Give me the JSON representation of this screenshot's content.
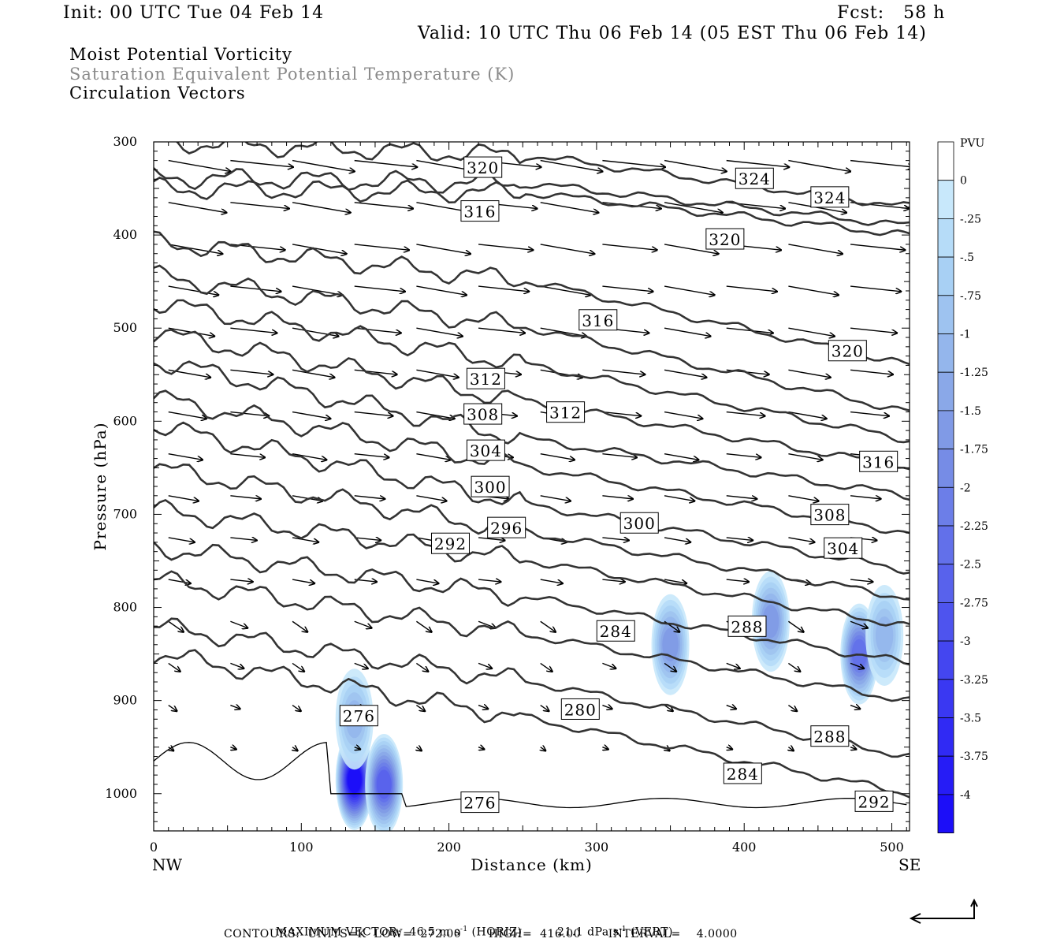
{
  "header": {
    "init": "Init: 00 UTC Tue 04 Feb 14",
    "fcst": "Fcst:   58 h",
    "valid": "Valid: 10 UTC Thu 06 Feb 14 (05 EST Thu 06 Feb 14)"
  },
  "descriptions": [
    "Moist Potential Vorticity",
    "Saturation Equivalent Potential Temperature (K)",
    "Circulation Vectors"
  ],
  "chart_data": {
    "type": "contour-cross-section",
    "ylabel": "Pressure (hPa)",
    "xlabel": "Distance (km)",
    "x_ticks": [
      0,
      100,
      200,
      300,
      400,
      500
    ],
    "y_ticks": [
      300,
      400,
      500,
      600,
      700,
      800,
      900,
      1000
    ],
    "xlim": [
      0,
      512
    ],
    "ylim": [
      300,
      1040
    ],
    "x_end_labels": {
      "left": "NW",
      "right": "SE"
    },
    "colorbar": {
      "unit": "PVU",
      "labels": [
        "0",
        "-.25",
        "-.5",
        "-.75",
        "-1",
        "-1.25",
        "-1.5",
        "-1.75",
        "-2",
        "-2.25",
        "-2.5",
        "-2.75",
        "-3",
        "-3.25",
        "-3.5",
        "-3.75",
        "-4"
      ],
      "colors": [
        "#ffffff",
        "#c8e8fb",
        "#b6dcf8",
        "#a8d0f4",
        "#9ec3f0",
        "#94b6ec",
        "#8aa8e8",
        "#809ae6",
        "#768ce6",
        "#6c7ee8",
        "#6270ea",
        "#5862ec",
        "#4e54ee",
        "#4446f0",
        "#3a38f2",
        "#302af4",
        "#261cf6",
        "#1c0ef8"
      ]
    },
    "contour_labels": [
      {
        "text": "320",
        "x": 223,
        "y": 328
      },
      {
        "text": "324",
        "x": 407,
        "y": 340
      },
      {
        "text": "324",
        "x": 458,
        "y": 360
      },
      {
        "text": "316",
        "x": 221,
        "y": 375
      },
      {
        "text": "320",
        "x": 387,
        "y": 405
      },
      {
        "text": "316",
        "x": 301,
        "y": 492
      },
      {
        "text": "320",
        "x": 470,
        "y": 525
      },
      {
        "text": "312",
        "x": 225,
        "y": 555
      },
      {
        "text": "308",
        "x": 223,
        "y": 593
      },
      {
        "text": "312",
        "x": 279,
        "y": 591
      },
      {
        "text": "304",
        "x": 225,
        "y": 632
      },
      {
        "text": "316",
        "x": 491,
        "y": 644
      },
      {
        "text": "300",
        "x": 228,
        "y": 671
      },
      {
        "text": "308",
        "x": 458,
        "y": 701
      },
      {
        "text": "296",
        "x": 239,
        "y": 715
      },
      {
        "text": "300",
        "x": 329,
        "y": 710
      },
      {
        "text": "304",
        "x": 467,
        "y": 737
      },
      {
        "text": "292",
        "x": 201,
        "y": 732
      },
      {
        "text": "284",
        "x": 313,
        "y": 826
      },
      {
        "text": "288",
        "x": 402,
        "y": 821
      },
      {
        "text": "276",
        "x": 139,
        "y": 917
      },
      {
        "text": "280",
        "x": 289,
        "y": 910
      },
      {
        "text": "288",
        "x": 458,
        "y": 939
      },
      {
        "text": "284",
        "x": 399,
        "y": 979
      },
      {
        "text": "276",
        "x": 221,
        "y": 1010
      },
      {
        "text": "292",
        "x": 488,
        "y": 1009
      }
    ],
    "pv_regions": [
      {
        "x": 136,
        "p": 985,
        "level": -4
      },
      {
        "x": 156,
        "p": 990,
        "level": -2.5
      },
      {
        "x": 136,
        "p": 920,
        "level": -1
      },
      {
        "x": 350,
        "p": 840,
        "level": -1.5
      },
      {
        "x": 418,
        "p": 815,
        "level": -1.5
      },
      {
        "x": 478,
        "p": 850,
        "level": -2.25
      },
      {
        "x": 495,
        "p": 830,
        "level": -1
      }
    ]
  },
  "footer": {
    "line1_a": "MAXIMUM VECTOR:  46.5 m s",
    "line1_b": "-1",
    "line1_c": " (HORIZ)         21.1 dPa s",
    "line1_d": "-1",
    "line1_e": " (VERT)",
    "line2": "CONTOURS:  UNITS=K  LOW=  272.00       HIGH=  416.00       INTERVAL=    4.0000"
  }
}
